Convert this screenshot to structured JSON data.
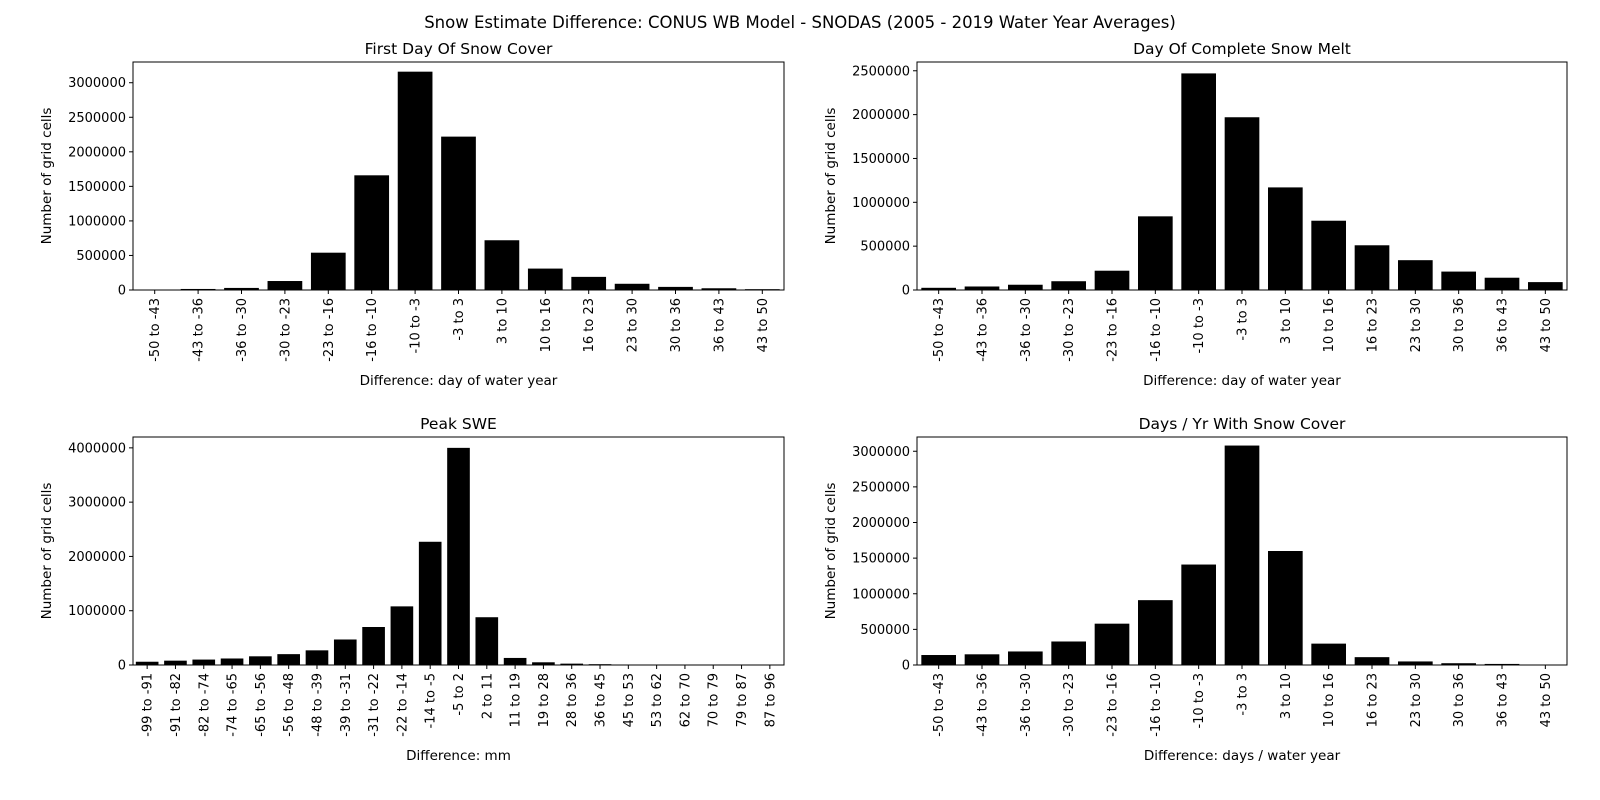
{
  "figure": {
    "title": "Snow Estimate Difference: CONUS WB Model - SNODAS (2005 - 2019 Water Year Averages)"
  },
  "chart_data": [
    {
      "type": "bar",
      "title": "First Day Of Snow Cover",
      "xlabel": "Difference: day of water year",
      "ylabel": "Number of grid cells",
      "categories": [
        "-50 to -43",
        "-43 to -36",
        "-36 to -30",
        "-30 to -23",
        "-23 to -16",
        "-16 to -10",
        "-10 to -3",
        "-3 to 3",
        "3 to 10",
        "10 to 16",
        "16 to 23",
        "23 to 30",
        "30 to 36",
        "36 to 43",
        "43 to 50"
      ],
      "values": [
        5000,
        15000,
        30000,
        130000,
        540000,
        1660000,
        3160000,
        2220000,
        720000,
        310000,
        190000,
        90000,
        45000,
        25000,
        12000
      ],
      "ylim": [
        0,
        3300000
      ],
      "yticks": [
        0,
        500000,
        1000000,
        1500000,
        2000000,
        2500000,
        3000000
      ],
      "ytick_labels": [
        "0",
        "500000",
        "1000000",
        "1500000",
        "2000000",
        "2500000",
        "3000000"
      ],
      "color": "#000000"
    },
    {
      "type": "bar",
      "title": "Day Of Complete Snow Melt",
      "xlabel": "Difference: day of water year",
      "ylabel": "Number of grid cells",
      "categories": [
        "-50 to -43",
        "-43 to -36",
        "-36 to -30",
        "-30 to -23",
        "-23 to -16",
        "-16 to -10",
        "-10 to -3",
        "-3 to 3",
        "3 to 10",
        "10 to 16",
        "16 to 23",
        "23 to 30",
        "30 to 36",
        "36 to 43",
        "43 to 50"
      ],
      "values": [
        25000,
        40000,
        60000,
        100000,
        220000,
        840000,
        2470000,
        1970000,
        1170000,
        790000,
        510000,
        340000,
        210000,
        140000,
        90000
      ],
      "ylim": [
        0,
        2600000
      ],
      "yticks": [
        0,
        500000,
        1000000,
        1500000,
        2000000,
        2500000
      ],
      "ytick_labels": [
        "0",
        "500000",
        "1000000",
        "1500000",
        "2000000",
        "2500000"
      ],
      "color": "#000000"
    },
    {
      "type": "bar",
      "title": "Peak SWE",
      "xlabel": "Difference: mm",
      "ylabel": "Number of grid cells",
      "categories": [
        "-99 to -91",
        "-91 to -82",
        "-82 to -74",
        "-74 to -65",
        "-65 to -56",
        "-56 to -48",
        "-48 to -39",
        "-39 to -31",
        "-31 to -22",
        "-22 to -14",
        "-14 to -5",
        "-5 to 2",
        "2 to 11",
        "11 to 19",
        "19 to 28",
        "28 to 36",
        "36 to 45",
        "45 to 53",
        "53 to 62",
        "62 to 70",
        "70 to 79",
        "79 to 87",
        "87 to 96"
      ],
      "values": [
        60000,
        80000,
        100000,
        120000,
        160000,
        200000,
        270000,
        470000,
        700000,
        1080000,
        2270000,
        4000000,
        880000,
        130000,
        50000,
        25000,
        15000,
        8000,
        5000,
        3000,
        2000,
        1000,
        500
      ],
      "ylim": [
        0,
        4200000
      ],
      "yticks": [
        0,
        1000000,
        2000000,
        3000000,
        4000000
      ],
      "ytick_labels": [
        "0",
        "1000000",
        "2000000",
        "3000000",
        "4000000"
      ],
      "color": "#000000"
    },
    {
      "type": "bar",
      "title": "Days / Yr With Snow Cover",
      "xlabel": "Difference: days / water year",
      "ylabel": "Number of grid cells",
      "categories": [
        "-50 to -43",
        "-43 to -36",
        "-36 to -30",
        "-30 to -23",
        "-23 to -16",
        "-16 to -10",
        "-10 to -3",
        "-3 to 3",
        "3 to 10",
        "10 to 16",
        "16 to 23",
        "23 to 30",
        "30 to 36",
        "36 to 43",
        "43 to 50"
      ],
      "values": [
        140000,
        150000,
        190000,
        330000,
        580000,
        910000,
        1410000,
        3080000,
        1600000,
        300000,
        110000,
        50000,
        25000,
        15000,
        5000
      ],
      "ylim": [
        0,
        3200000
      ],
      "yticks": [
        0,
        500000,
        1000000,
        1500000,
        2000000,
        2500000,
        3000000
      ],
      "ytick_labels": [
        "0",
        "500000",
        "1000000",
        "1500000",
        "2000000",
        "2500000",
        "3000000"
      ],
      "color": "#000000"
    }
  ]
}
